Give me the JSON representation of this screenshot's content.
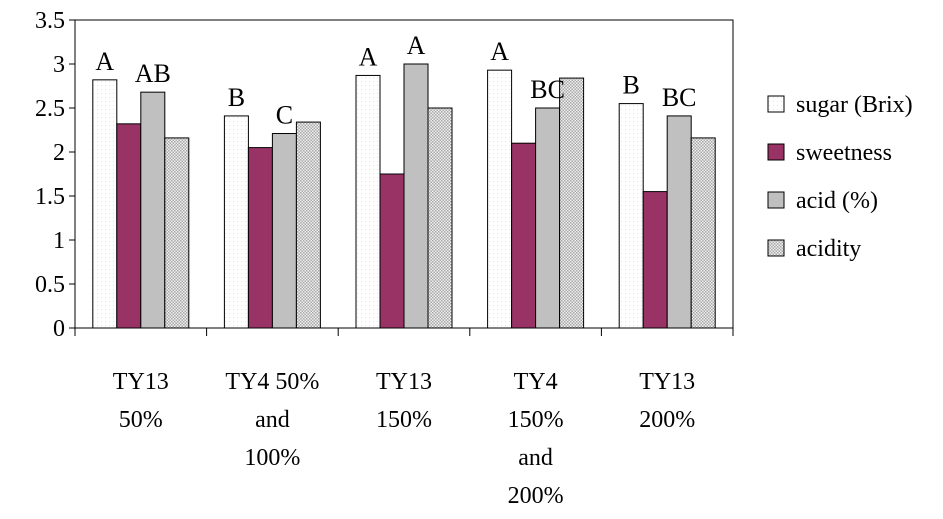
{
  "chart_data": {
    "type": "bar",
    "title": "",
    "xlabel": "",
    "ylabel": "",
    "ylim": [
      0,
      3.5
    ],
    "yticks": [
      "0",
      "0.5",
      "1",
      "1.5",
      "2",
      "2.5",
      "3",
      "3.5"
    ],
    "categories": [
      [
        "TY13",
        "50%"
      ],
      [
        "TY4 50%",
        "and",
        "100%"
      ],
      [
        "TY13",
        "150%"
      ],
      [
        "TY4",
        "150%",
        "and",
        "200%"
      ],
      [
        "TY13",
        "200%"
      ]
    ],
    "series": [
      {
        "name": "sugar (Brix)",
        "color": "#ffffff",
        "pattern": "dots-light",
        "values": [
          2.82,
          2.41,
          2.87,
          2.93,
          2.55
        ]
      },
      {
        "name": "sweetness",
        "color": "#993366",
        "pattern": "solid",
        "values": [
          2.32,
          2.05,
          1.75,
          2.1,
          1.55
        ]
      },
      {
        "name": "acid (%)",
        "color": "#c0c0c0",
        "pattern": "solid",
        "values": [
          2.68,
          2.21,
          3.0,
          2.5,
          2.41
        ]
      },
      {
        "name": "acidity",
        "color": "#d6d6d6",
        "pattern": "checker",
        "values": [
          2.16,
          2.34,
          2.5,
          2.84,
          2.16
        ]
      }
    ],
    "annotations": [
      {
        "category": 0,
        "series": 0,
        "text": "A"
      },
      {
        "category": 0,
        "series": 2,
        "text": "AB"
      },
      {
        "category": 1,
        "series": 0,
        "text": "B"
      },
      {
        "category": 1,
        "series": 2,
        "text": "C"
      },
      {
        "category": 2,
        "series": 0,
        "text": "A"
      },
      {
        "category": 2,
        "series": 2,
        "text": "A"
      },
      {
        "category": 3,
        "series": 0,
        "text": "A"
      },
      {
        "category": 3,
        "series": 2,
        "text": "BC"
      },
      {
        "category": 4,
        "series": 0,
        "text": "B"
      },
      {
        "category": 4,
        "series": 2,
        "text": "BC"
      }
    ],
    "legend_position": "right",
    "grid": false
  }
}
